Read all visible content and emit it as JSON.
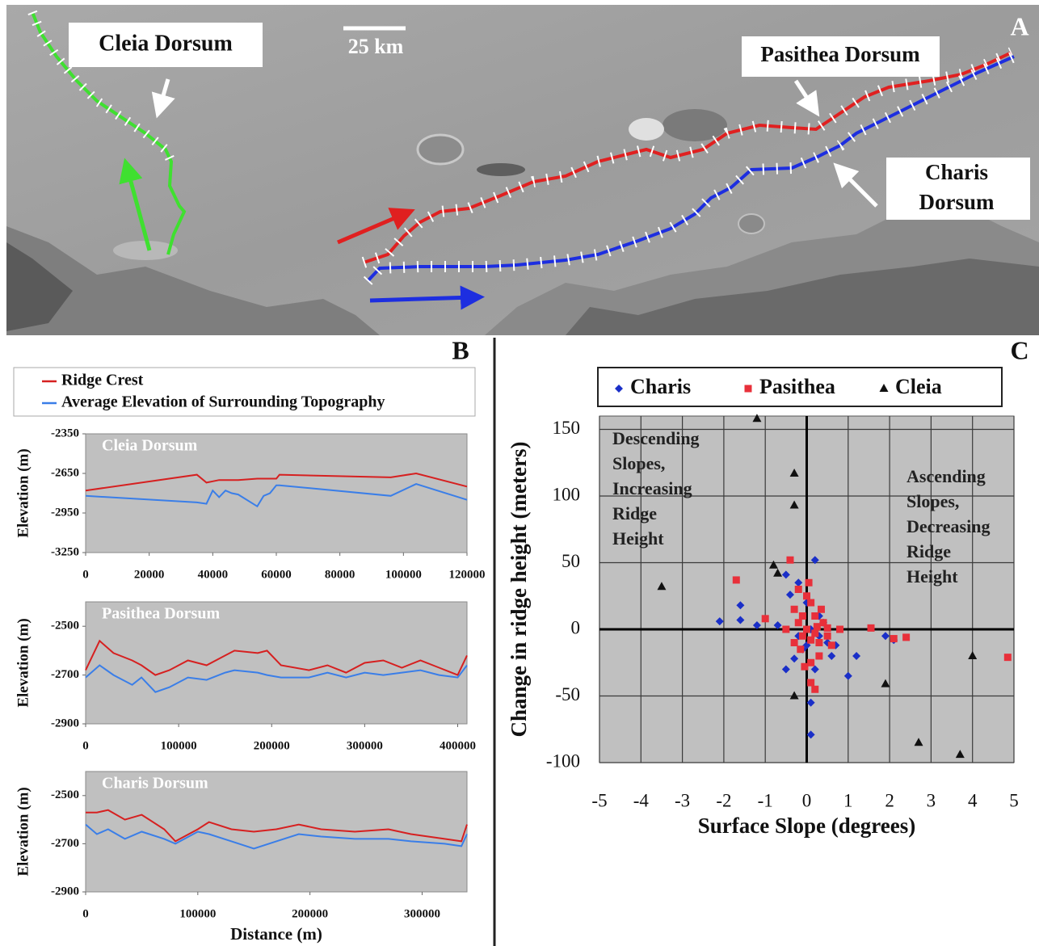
{
  "map_panel": {
    "panel_label": "A",
    "scale_bar": "25 km",
    "cleia_label": "Cleia Dorsum",
    "pasithea_label": "Pasithea Dorsum",
    "charis_label": [
      "Charis",
      "Dorsum"
    ]
  },
  "chart_data": [
    {
      "type": "line",
      "panel_label": "B",
      "title": "Cleia Dorsum",
      "ylabel": "Elevation (m)",
      "x": [
        0,
        35000,
        38000,
        40000,
        42000,
        44000,
        46000,
        48000,
        54000,
        56000,
        58000,
        60000,
        61000,
        96000,
        104000,
        120000
      ],
      "xlim": [
        0,
        120000
      ],
      "xticks": [
        0,
        20000,
        40000,
        60000,
        80000,
        100000,
        120000
      ],
      "ylim": [
        -3250,
        -2350
      ],
      "yticks": [
        -3250,
        -2950,
        -2650,
        -2350
      ],
      "series": [
        {
          "name": "Ridge Crest",
          "color": "#d62020",
          "values": [
            -2780,
            -2660,
            -2720,
            -2710,
            -2700,
            -2700,
            -2700,
            -2700,
            -2690,
            -2690,
            -2690,
            -2690,
            -2660,
            -2680,
            -2650,
            -2750
          ]
        },
        {
          "name": "Average Elevation of Surrounding Topography",
          "color": "#3a7ee8",
          "values": [
            -2820,
            -2870,
            -2880,
            -2780,
            -2830,
            -2780,
            -2800,
            -2810,
            -2900,
            -2820,
            -2800,
            -2740,
            -2740,
            -2820,
            -2730,
            -2850
          ]
        }
      ]
    },
    {
      "type": "line",
      "title": "Pasithea Dorsum",
      "ylabel": "Elevation (m)",
      "x": [
        0,
        15000,
        30000,
        50000,
        60000,
        75000,
        90000,
        110000,
        130000,
        150000,
        160000,
        185000,
        195000,
        210000,
        240000,
        260000,
        280000,
        300000,
        320000,
        340000,
        360000,
        380000,
        400000,
        410000
      ],
      "xlim": [
        0,
        410000
      ],
      "xticks": [
        0,
        100000,
        200000,
        300000,
        400000
      ],
      "ylim": [
        -2900,
        -2400
      ],
      "yticks": [
        -2900,
        -2700,
        -2500
      ],
      "series": [
        {
          "color": "#d62020",
          "values": [
            -2680,
            -2560,
            -2610,
            -2640,
            -2660,
            -2700,
            -2680,
            -2640,
            -2660,
            -2620,
            -2600,
            -2610,
            -2600,
            -2660,
            -2680,
            -2660,
            -2690,
            -2650,
            -2640,
            -2670,
            -2640,
            -2670,
            -2700,
            -2620
          ]
        },
        {
          "color": "#3a7ee8",
          "values": [
            -2710,
            -2660,
            -2700,
            -2740,
            -2710,
            -2770,
            -2750,
            -2710,
            -2720,
            -2690,
            -2680,
            -2690,
            -2700,
            -2710,
            -2710,
            -2690,
            -2710,
            -2690,
            -2700,
            -2690,
            -2680,
            -2700,
            -2710,
            -2660
          ]
        }
      ]
    },
    {
      "type": "line",
      "title": "Charis Dorsum",
      "ylabel": "Elevation (m)",
      "xlabel": "Distance (m)",
      "x": [
        0,
        10000,
        20000,
        35000,
        50000,
        70000,
        80000,
        100000,
        110000,
        130000,
        150000,
        170000,
        190000,
        210000,
        240000,
        270000,
        290000,
        320000,
        335000,
        340000
      ],
      "xlim": [
        0,
        340000
      ],
      "xticks": [
        0,
        100000,
        200000,
        300000
      ],
      "ylim": [
        -2900,
        -2400
      ],
      "yticks": [
        -2900,
        -2700,
        -2500
      ],
      "series": [
        {
          "color": "#d62020",
          "values": [
            -2570,
            -2570,
            -2560,
            -2600,
            -2580,
            -2640,
            -2690,
            -2640,
            -2610,
            -2640,
            -2650,
            -2640,
            -2620,
            -2640,
            -2650,
            -2640,
            -2660,
            -2680,
            -2690,
            -2620
          ]
        },
        {
          "color": "#3a7ee8",
          "values": [
            -2620,
            -2660,
            -2640,
            -2680,
            -2650,
            -2680,
            -2700,
            -2650,
            -2660,
            -2690,
            -2720,
            -2690,
            -2660,
            -2670,
            -2680,
            -2680,
            -2690,
            -2700,
            -2710,
            -2660
          ]
        }
      ]
    },
    {
      "type": "scatter",
      "panel_label": "C",
      "xlabel": "Surface Slope (degrees)",
      "ylabel": "Change in ridge height (meters)",
      "xlim": [
        -5,
        5
      ],
      "xticks": [
        -5,
        -4,
        -3,
        -2,
        -1,
        0,
        1,
        2,
        3,
        4,
        5
      ],
      "ylim": [
        -100,
        160
      ],
      "yticks": [
        -100,
        -50,
        0,
        50,
        100,
        150
      ],
      "grid": true,
      "annotations": [
        {
          "lines": [
            "Descending",
            "Slopes,",
            "Increasing",
            "Ridge",
            "Height"
          ]
        },
        {
          "lines": [
            "Ascending",
            "Slopes,",
            "Decreasing",
            "Ridge",
            "Height"
          ]
        }
      ],
      "series": [
        {
          "name": "Charis",
          "color": "#1a2fc8",
          "marker": "diamond",
          "x": [
            -2.1,
            -1.6,
            -1.6,
            -1.2,
            0.1,
            0.1,
            0.2,
            1.0,
            1.2,
            1.9,
            2.1,
            -0.5,
            -0.4,
            -0.2,
            0,
            0.3,
            0.5,
            0.6,
            -0.5,
            -0.3,
            0.2,
            -0.1,
            0.4,
            0.7,
            -0.7,
            0.1,
            -0.2,
            0.3,
            0
          ],
          "values": [
            6,
            18,
            7,
            3,
            -79,
            -55,
            52,
            -35,
            -20,
            -5,
            -8,
            41,
            26,
            35,
            20,
            10,
            -10,
            -20,
            -30,
            -22,
            -30,
            -15,
            5,
            -12,
            3,
            0,
            -5,
            -5,
            -12
          ]
        },
        {
          "name": "Pasithea",
          "color": "#e8303a",
          "marker": "square",
          "x": [
            -1.7,
            -1.0,
            4.85,
            1.55,
            2.4,
            2.1,
            0.5,
            0.8,
            -0.4,
            -0.2,
            0.1,
            0.2,
            0,
            -0.1,
            0.3,
            0.1,
            0.2,
            0.1,
            -0.3,
            -0.2,
            0.4,
            0.5,
            0.6,
            -0.1,
            0,
            0.3,
            -0.3,
            0.2,
            -0.5,
            0.05,
            -0.15,
            0.35,
            0.1,
            0.25,
            -0.05
          ],
          "values": [
            37,
            8,
            -21,
            1,
            -6,
            -7,
            1,
            0,
            52,
            30,
            20,
            10,
            0,
            -5,
            -10,
            -25,
            -45,
            -40,
            15,
            5,
            5,
            -5,
            -12,
            10,
            25,
            -20,
            -10,
            -3,
            0,
            35,
            -15,
            15,
            -8,
            2,
            -28
          ]
        },
        {
          "name": "Cleia",
          "color": "#111111",
          "marker": "triangle",
          "x": [
            -1.2,
            -0.3,
            -0.3,
            -3.5,
            -0.8,
            -0.7,
            -0.3,
            1.9,
            2.7,
            3.7,
            4.0
          ],
          "values": [
            158,
            117,
            93,
            32,
            48,
            42,
            -50,
            -41,
            -85,
            -94,
            -20
          ]
        }
      ]
    }
  ]
}
